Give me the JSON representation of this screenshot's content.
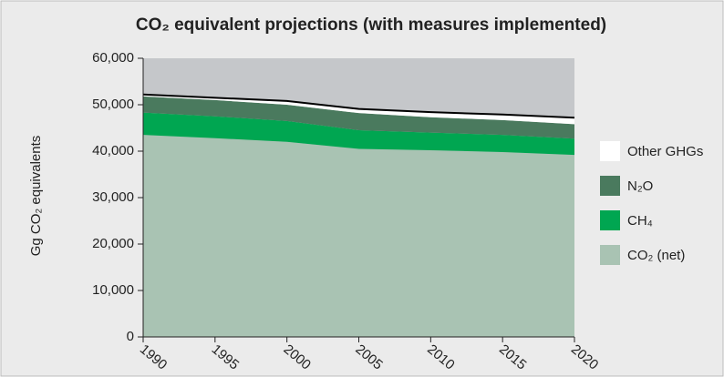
{
  "chart_data": {
    "type": "stacked_area",
    "title": "CO₂ equivalent projections (with measures implemented)",
    "y_label": "Gg CO₂ equivalents",
    "x": [
      1990,
      1995,
      2000,
      2005,
      2010,
      2015,
      2020
    ],
    "xlim": [
      1990,
      2020
    ],
    "xticks": [
      1990,
      1995,
      2000,
      2005,
      2010,
      2015,
      2020
    ],
    "ylim": [
      0,
      60000
    ],
    "yticks": [
      {
        "value": 0,
        "label": "0"
      },
      {
        "value": 10000,
        "label": "10,000"
      },
      {
        "value": 20000,
        "label": "20,000"
      },
      {
        "value": 30000,
        "label": "30,000"
      },
      {
        "value": 40000,
        "label": "40,000"
      },
      {
        "value": 50000,
        "label": "50,000"
      },
      {
        "value": 60000,
        "label": "60,000"
      }
    ],
    "series": [
      {
        "name": "CO₂ (net)",
        "color": "#a9c3b3",
        "values": [
          43500,
          42800,
          42000,
          40500,
          40200,
          39800,
          39200
        ]
      },
      {
        "name": "CH₄",
        "color": "#00a651",
        "values": [
          4800,
          4700,
          4500,
          4000,
          3800,
          3700,
          3500
        ]
      },
      {
        "name": "N₂O",
        "color": "#4a7a5e",
        "values": [
          3500,
          3500,
          3500,
          3700,
          3300,
          3200,
          3100
        ]
      },
      {
        "name": "Other GHGs",
        "color": "#ffffff",
        "values": [
          400,
          500,
          800,
          900,
          1100,
          1200,
          1400
        ]
      }
    ]
  }
}
